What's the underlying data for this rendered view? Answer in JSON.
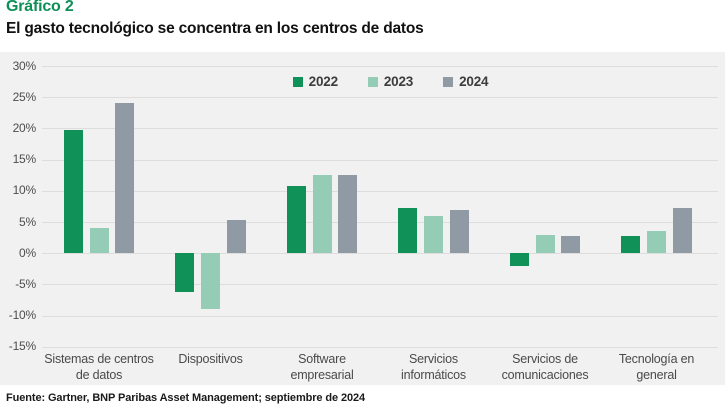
{
  "header": {
    "label": "Gráfico 2",
    "title": "El gasto tecnológico se concentra en los centros de datos"
  },
  "footer": {
    "source": "Fuente: Gartner, BNP Paribas Asset Management; septiembre de 2024"
  },
  "colors": {
    "title_green": "#0c9057",
    "panel_bg": "#f1f1f2",
    "gridline": "#dddddd",
    "axis_text": "#4d4d4d",
    "category_text": "#4a4a4a"
  },
  "chart_data": {
    "type": "bar",
    "title": "El gasto tecnológico se concentra en los centros de datos",
    "xlabel": "",
    "ylabel": "",
    "ylim": [
      -15,
      30
    ],
    "ytick_step": 5,
    "ytick_format": "percent",
    "grid": true,
    "legend_position": "top-center",
    "categories": [
      "Sistemas de centros de datos",
      "Dispositivos",
      "Software empresarial",
      "Servicios informáticos",
      "Servicios de comunicaciones",
      "Tecnología en general"
    ],
    "series": [
      {
        "name": "2022",
        "color": "#0f9158",
        "values": [
          19.7,
          -6.3,
          10.7,
          7.3,
          -2.0,
          2.7
        ]
      },
      {
        "name": "2023",
        "color": "#94ccb5",
        "values": [
          4.0,
          -9.0,
          12.5,
          6.0,
          3.0,
          3.5
        ]
      },
      {
        "name": "2024",
        "color": "#8f9aa4",
        "values": [
          24.0,
          5.3,
          12.5,
          7.0,
          2.8,
          7.3
        ]
      }
    ]
  }
}
